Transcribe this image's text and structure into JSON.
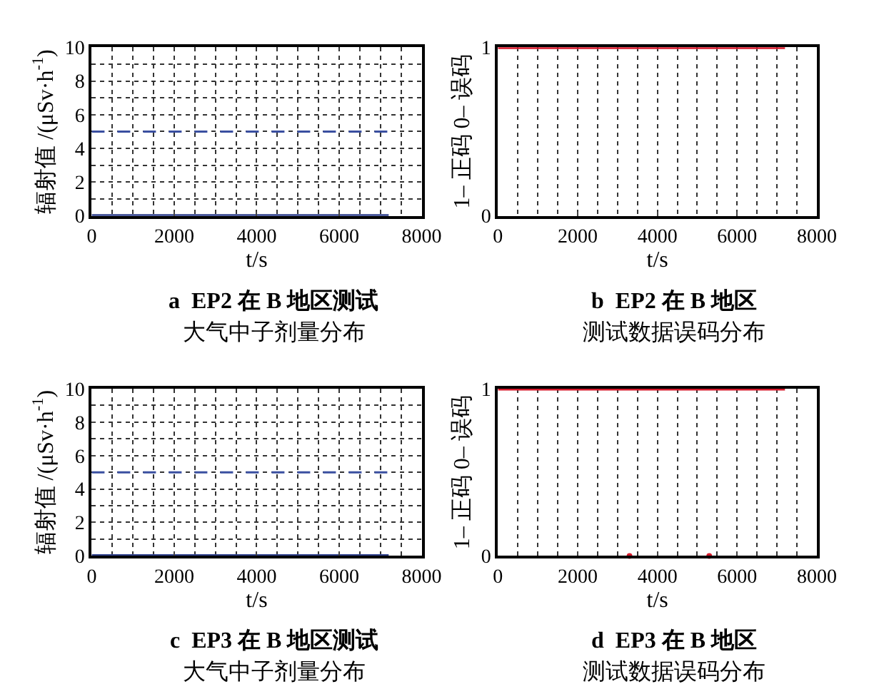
{
  "chart_data": [
    {
      "type": "line",
      "title": "a  EP2 在 B 地区测试",
      "subtitle": "大气中子剂量分布",
      "xlabel": "t/s",
      "ylabel": "辐射值 /(μSv·h$^{-1}$)",
      "xlim": [
        0,
        8000
      ],
      "xticks": [
        0,
        2000,
        4000,
        6000,
        8000
      ],
      "ylim": [
        0,
        10
      ],
      "yticks": [
        0,
        2,
        4,
        6,
        8,
        10
      ],
      "grid": true,
      "series": [
        {
          "color": "#2e3f8c",
          "x": [
            0,
            7200
          ],
          "values": [
            0,
            0
          ],
          "line_style": "solid"
        },
        {
          "color": "#3a4fa0",
          "x": [
            0,
            7200
          ],
          "values": [
            5,
            5
          ],
          "line_style": "dashed"
        }
      ]
    },
    {
      "type": "line",
      "title": "b  EP2 在 B 地区",
      "subtitle": "测试数据误码分布",
      "xlabel": "t/s",
      "ylabel": "1– 正码 0– 误码",
      "xlim": [
        0,
        8000
      ],
      "xticks": [
        0,
        2000,
        4000,
        6000,
        8000
      ],
      "ylim": [
        0,
        1
      ],
      "yticks": [
        0,
        1
      ],
      "grid": "x",
      "series": [
        {
          "color": "#d7192b",
          "x": [
            0,
            7200
          ],
          "values": [
            1,
            1
          ],
          "line_style": "solid"
        }
      ]
    },
    {
      "type": "line",
      "title": "c  EP3 在 B 地区测试",
      "subtitle": "大气中子剂量分布",
      "xlabel": "t/s",
      "ylabel": "辐射值 /(μSv·h$^{-1}$)",
      "xlim": [
        0,
        8000
      ],
      "xticks": [
        0,
        2000,
        4000,
        6000,
        8000
      ],
      "ylim": [
        0,
        10
      ],
      "yticks": [
        0,
        2,
        4,
        6,
        8,
        10
      ],
      "grid": true,
      "series": [
        {
          "color": "#2e3f8c",
          "x": [
            0,
            7200
          ],
          "values": [
            0,
            0
          ],
          "line_style": "solid"
        },
        {
          "color": "#3a4fa0",
          "x": [
            0,
            7200
          ],
          "values": [
            5,
            5
          ],
          "line_style": "dashed"
        }
      ]
    },
    {
      "type": "line",
      "title": "d  EP3 在 B 地区",
      "subtitle": "测试数据误码分布",
      "xlabel": "t/s",
      "ylabel": "1– 正码 0– 误码",
      "xlim": [
        0,
        8000
      ],
      "xticks": [
        0,
        2000,
        4000,
        6000,
        8000
      ],
      "ylim": [
        0,
        1
      ],
      "yticks": [
        0,
        1
      ],
      "grid": "x",
      "series": [
        {
          "color": "#d7192b",
          "x": [
            0,
            7200
          ],
          "values": [
            1,
            1
          ],
          "line_style": "solid"
        },
        {
          "type": "scatter",
          "color": "#d7192b",
          "x": [
            3300,
            5300
          ],
          "values": [
            0,
            0
          ],
          "marker": "circle"
        }
      ]
    }
  ]
}
